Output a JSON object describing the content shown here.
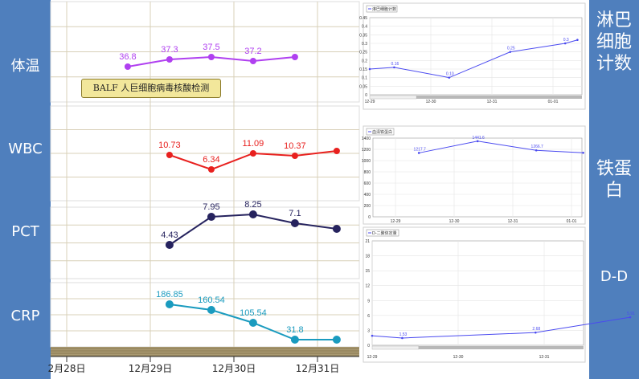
{
  "left_labels": [
    "体温",
    "WBC",
    "PCT",
    "CRP"
  ],
  "right_labels": {
    "lymph": [
      "淋巴",
      "细胞",
      "计数"
    ],
    "ferritin": [
      "铁蛋",
      "白"
    ],
    "dd": [
      "D-D"
    ]
  },
  "annotation": "BALF 人巨细胞病毒核酸检测",
  "bottom_dates": [
    "2月28日",
    "12月29日",
    "12月30日",
    "12月31日"
  ],
  "colors": {
    "temp": "#b040f0",
    "wbc": "#e8201e",
    "pct": "#26235e",
    "crp": "#1a9bbf",
    "mini": "#4a4af0",
    "sidebar": "#4f7fbd"
  },
  "chart_data": [
    {
      "type": "line",
      "name": "temp",
      "x_days": [
        0.73,
        1.23,
        1.73,
        2.23,
        2.73
      ],
      "values": [
        36.8,
        37.3,
        37.5,
        37.2,
        37.5
      ],
      "labels": [
        "36.8",
        "37.3",
        "37.5",
        "37.2",
        ""
      ]
    },
    {
      "type": "line",
      "name": "wbc",
      "x_days": [
        1.23,
        1.73,
        2.23,
        2.73,
        3.23
      ],
      "values": [
        10.73,
        6.34,
        11.09,
        10.37,
        11.0
      ],
      "labels": [
        "10.73",
        "6.34",
        "11.09",
        "10.37",
        ""
      ]
    },
    {
      "type": "line",
      "name": "pct",
      "x_days": [
        1.23,
        1.73,
        2.23,
        2.73,
        3.23
      ],
      "values": [
        4.43,
        7.95,
        8.25,
        7.1,
        6.0
      ],
      "labels": [
        "4.43",
        "7.95",
        "8.25",
        "7.1",
        ""
      ]
    },
    {
      "type": "line",
      "name": "crp",
      "x_days": [
        1.23,
        1.73,
        2.23,
        2.73,
        3.23
      ],
      "values": [
        186.85,
        160.54,
        105.54,
        31.8,
        30
      ],
      "labels": [
        "186.85",
        "160.54",
        "105.54",
        "31.8",
        ""
      ]
    },
    {
      "type": "line",
      "name": "lymph",
      "title": "淋巴细胞计数",
      "y_ticks": [
        "0.45",
        "0.4",
        "0.35",
        "0.3",
        "0.25",
        "0.2",
        "0.15",
        "0.1",
        "0.05",
        "0"
      ],
      "x_ticks": [
        "12-29",
        "12-30",
        "12-31",
        "01-01"
      ],
      "points": [
        {
          "x": 0,
          "y": 0.15
        },
        {
          "x": 0.4,
          "y": 0.16
        },
        {
          "x": 1.3,
          "y": 0.1
        },
        {
          "x": 2.3,
          "y": 0.25
        },
        {
          "x": 3.2,
          "y": 0.3
        },
        {
          "x": 3.4,
          "y": 0.32
        }
      ],
      "labels": [
        "",
        "0.16",
        "0.10",
        "0.25",
        "0.3",
        ""
      ],
      "ylim": [
        0,
        0.45
      ]
    },
    {
      "type": "line",
      "name": "ferritin",
      "title": "血清铁蛋白",
      "y_ticks": [
        "1400",
        "1200",
        "1000",
        "800",
        "600",
        "400",
        "200",
        "0"
      ],
      "x_ticks": [
        "12-29",
        "12-30",
        "12-31",
        "01-01"
      ],
      "points": [
        {
          "x": 0.4,
          "y": 1217.7
        },
        {
          "x": 1.4,
          "y": 1441.6
        },
        {
          "x": 2.4,
          "y": 1266.7
        },
        {
          "x": 3.2,
          "y": 1220
        }
      ],
      "labels": [
        "1217.7",
        "1441.6",
        "1266.7",
        ""
      ],
      "ylim": [
        0,
        1500
      ]
    },
    {
      "type": "line",
      "name": "dd",
      "title": "D-二聚体定量",
      "y_ticks": [
        "21",
        "18",
        "15",
        "12",
        "9",
        "6",
        "3",
        "0"
      ],
      "x_ticks": [
        "12-29",
        "12-30",
        "12-31"
      ],
      "points": [
        {
          "x": 0,
          "y": 2.0
        },
        {
          "x": 0.35,
          "y": 1.53
        },
        {
          "x": 1.9,
          "y": 2.68
        },
        {
          "x": 3.0,
          "y": 5.91
        }
      ],
      "labels": [
        "",
        "1.53",
        "2.68",
        "5.91"
      ],
      "ylim": [
        0,
        22
      ]
    }
  ]
}
